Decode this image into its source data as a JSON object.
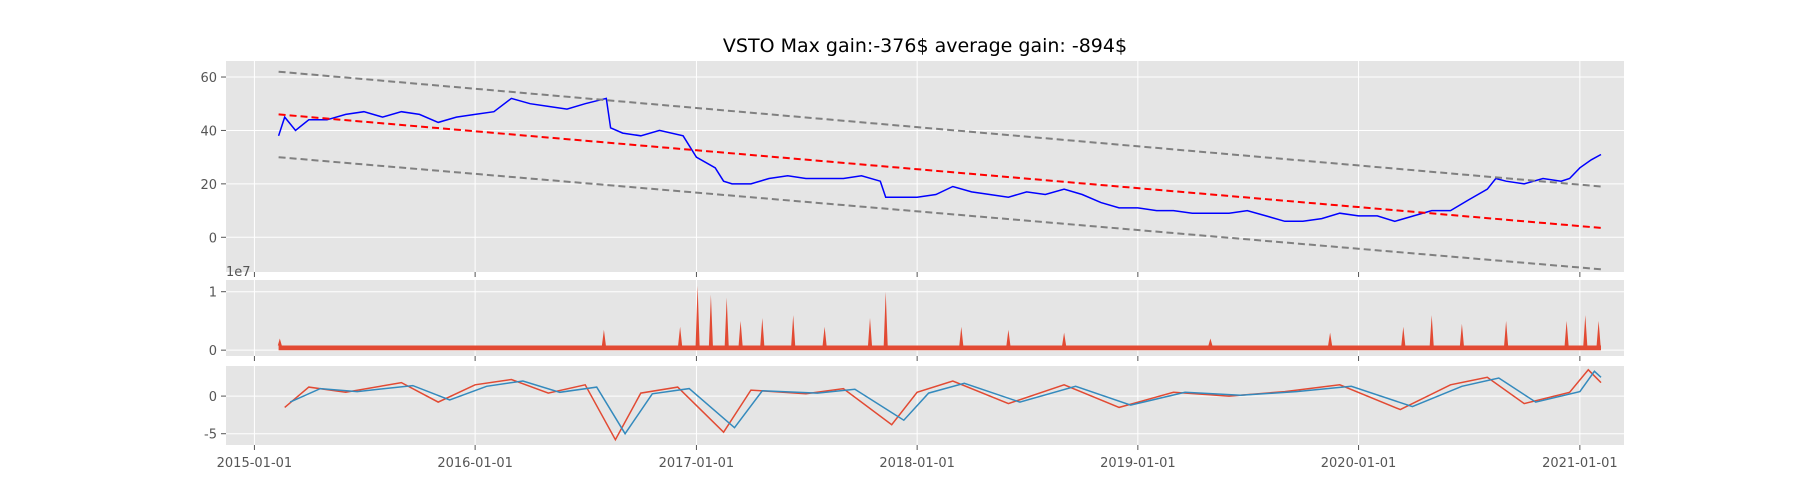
{
  "chart_data": [
    {
      "type": "line",
      "title": "VSTO Max gain:-376$  average gain: -894$",
      "ylim": [
        -13,
        66
      ],
      "yticks": [
        0,
        20,
        40,
        60
      ],
      "grid": true,
      "series": [
        {
          "values": [
            [
              "2015-02-10",
              38
            ],
            [
              "2015-02-20",
              45
            ],
            [
              "2015-03-10",
              40
            ],
            [
              "2015-04-01",
              44
            ],
            [
              "2015-05-01",
              44
            ],
            [
              "2015-06-01",
              46
            ],
            [
              "2015-07-01",
              47
            ],
            [
              "2015-08-01",
              45
            ],
            [
              "2015-09-01",
              47
            ],
            [
              "2015-10-01",
              46
            ],
            [
              "2015-11-01",
              43
            ],
            [
              "2015-12-01",
              45
            ],
            [
              "2016-01-01",
              46
            ],
            [
              "2016-02-01",
              47
            ],
            [
              "2016-03-01",
              52
            ],
            [
              "2016-04-01",
              50
            ],
            [
              "2016-05-01",
              49
            ],
            [
              "2016-06-01",
              48
            ],
            [
              "2016-07-01",
              50
            ],
            [
              "2016-08-05",
              52
            ],
            [
              "2016-08-12",
              41
            ],
            [
              "2016-09-01",
              39
            ],
            [
              "2016-10-01",
              38
            ],
            [
              "2016-11-01",
              40
            ],
            [
              "2016-12-10",
              38
            ],
            [
              "2017-01-01",
              30
            ],
            [
              "2017-02-01",
              26
            ],
            [
              "2017-02-15",
              21
            ],
            [
              "2017-03-01",
              20
            ],
            [
              "2017-04-01",
              20
            ],
            [
              "2017-05-01",
              22
            ],
            [
              "2017-06-01",
              23
            ],
            [
              "2017-07-01",
              22
            ],
            [
              "2017-08-01",
              22
            ],
            [
              "2017-09-01",
              22
            ],
            [
              "2017-10-01",
              23
            ],
            [
              "2017-11-01",
              21
            ],
            [
              "2017-11-10",
              15
            ],
            [
              "2017-12-01",
              15
            ],
            [
              "2018-01-01",
              15
            ],
            [
              "2018-02-01",
              16
            ],
            [
              "2018-03-01",
              19
            ],
            [
              "2018-04-01",
              17
            ],
            [
              "2018-05-01",
              16
            ],
            [
              "2018-06-01",
              15
            ],
            [
              "2018-07-01",
              17
            ],
            [
              "2018-08-01",
              16
            ],
            [
              "2018-09-01",
              18
            ],
            [
              "2018-10-01",
              16
            ],
            [
              "2018-11-01",
              13
            ],
            [
              "2018-12-01",
              11
            ],
            [
              "2019-01-01",
              11
            ],
            [
              "2019-02-01",
              10
            ],
            [
              "2019-03-01",
              10
            ],
            [
              "2019-04-01",
              9
            ],
            [
              "2019-05-01",
              9
            ],
            [
              "2019-06-01",
              9
            ],
            [
              "2019-07-01",
              10
            ],
            [
              "2019-08-01",
              8
            ],
            [
              "2019-09-01",
              6
            ],
            [
              "2019-10-01",
              6
            ],
            [
              "2019-11-01",
              7
            ],
            [
              "2019-12-01",
              9
            ],
            [
              "2020-01-01",
              8
            ],
            [
              "2020-02-01",
              8
            ],
            [
              "2020-03-01",
              6
            ],
            [
              "2020-04-01",
              8
            ],
            [
              "2020-05-01",
              10
            ],
            [
              "2020-06-01",
              10
            ],
            [
              "2020-07-01",
              14
            ],
            [
              "2020-08-01",
              18
            ],
            [
              "2020-08-15",
              22
            ],
            [
              "2020-09-01",
              21
            ],
            [
              "2020-10-01",
              20
            ],
            [
              "2020-11-01",
              22
            ],
            [
              "2020-12-01",
              21
            ],
            [
              "2020-12-15",
              22
            ],
            [
              "2021-01-01",
              26
            ],
            [
              "2021-01-20",
              29
            ],
            [
              "2021-02-05",
              31
            ]
          ],
          "color": "#0000ff"
        },
        {
          "values": [
            [
              "2015-02-10",
              46
            ],
            [
              "2021-02-05",
              3.5
            ]
          ],
          "color": "#ff0000",
          "style": "dashed"
        },
        {
          "values": [
            [
              "2015-02-10",
              62
            ],
            [
              "2021-02-05",
              19
            ]
          ],
          "color": "#808080",
          "style": "dashed"
        },
        {
          "values": [
            [
              "2015-02-10",
              30
            ],
            [
              "2021-02-05",
              -12
            ]
          ],
          "color": "#808080",
          "style": "dashed"
        }
      ]
    },
    {
      "type": "area",
      "offset_label": "1e7",
      "ylim": [
        -0.1,
        1.2
      ],
      "yticks": [
        0,
        1
      ],
      "color": "#e24a33",
      "baseline": 0.08,
      "spikes": [
        [
          "2015-02-12",
          0.2
        ],
        [
          "2016-08-01",
          0.35
        ],
        [
          "2016-12-05",
          0.4
        ],
        [
          "2017-01-03",
          1.1
        ],
        [
          "2017-01-25",
          0.95
        ],
        [
          "2017-02-20",
          0.9
        ],
        [
          "2017-03-15",
          0.5
        ],
        [
          "2017-04-20",
          0.55
        ],
        [
          "2017-06-10",
          0.6
        ],
        [
          "2017-08-01",
          0.4
        ],
        [
          "2017-10-15",
          0.55
        ],
        [
          "2017-11-10",
          1.0
        ],
        [
          "2018-03-15",
          0.4
        ],
        [
          "2018-06-01",
          0.35
        ],
        [
          "2018-09-01",
          0.3
        ],
        [
          "2019-05-01",
          0.2
        ],
        [
          "2019-11-15",
          0.3
        ],
        [
          "2020-03-15",
          0.4
        ],
        [
          "2020-05-01",
          0.6
        ],
        [
          "2020-06-20",
          0.45
        ],
        [
          "2020-09-01",
          0.5
        ],
        [
          "2020-12-10",
          0.5
        ],
        [
          "2021-01-10",
          0.6
        ],
        [
          "2021-02-01",
          0.5
        ]
      ]
    },
    {
      "type": "line",
      "ylim": [
        -6.5,
        4
      ],
      "yticks": [
        0,
        -5
      ],
      "series": [
        {
          "values": [
            [
              "2015-02-20",
              -1.5
            ],
            [
              "2015-04-01",
              1.2
            ],
            [
              "2015-06-01",
              0.5
            ],
            [
              "2015-09-01",
              1.8
            ],
            [
              "2015-11-01",
              -0.8
            ],
            [
              "2016-01-01",
              1.5
            ],
            [
              "2016-03-01",
              2.2
            ],
            [
              "2016-05-01",
              0.4
            ],
            [
              "2016-07-01",
              1.5
            ],
            [
              "2016-08-20",
              -5.8
            ],
            [
              "2016-10-01",
              0.4
            ],
            [
              "2016-12-01",
              1.2
            ],
            [
              "2017-02-15",
              -4.8
            ],
            [
              "2017-04-01",
              0.8
            ],
            [
              "2017-07-01",
              0.3
            ],
            [
              "2017-09-01",
              1.0
            ],
            [
              "2017-11-20",
              -3.8
            ],
            [
              "2018-01-01",
              0.5
            ],
            [
              "2018-03-01",
              2.0
            ],
            [
              "2018-06-01",
              -1.0
            ],
            [
              "2018-09-01",
              1.5
            ],
            [
              "2018-12-01",
              -1.5
            ],
            [
              "2019-03-01",
              0.5
            ],
            [
              "2019-06-01",
              0.0
            ],
            [
              "2019-09-01",
              0.6
            ],
            [
              "2019-12-01",
              1.5
            ],
            [
              "2020-03-10",
              -1.8
            ],
            [
              "2020-06-01",
              1.5
            ],
            [
              "2020-08-01",
              2.5
            ],
            [
              "2020-10-01",
              -1.0
            ],
            [
              "2020-12-15",
              0.5
            ],
            [
              "2021-01-15",
              3.5
            ],
            [
              "2021-02-05",
              1.8
            ]
          ],
          "color": "#e24a33"
        },
        {
          "values": [
            [
              "2015-03-01",
              -0.8
            ],
            [
              "2015-04-20",
              1.0
            ],
            [
              "2015-06-20",
              0.6
            ],
            [
              "2015-09-20",
              1.4
            ],
            [
              "2015-11-20",
              -0.5
            ],
            [
              "2016-01-20",
              1.3
            ],
            [
              "2016-03-20",
              2.0
            ],
            [
              "2016-05-20",
              0.5
            ],
            [
              "2016-07-20",
              1.2
            ],
            [
              "2016-09-05",
              -5.0
            ],
            [
              "2016-10-20",
              0.3
            ],
            [
              "2016-12-20",
              1.0
            ],
            [
              "2017-03-05",
              -4.2
            ],
            [
              "2017-04-20",
              0.7
            ],
            [
              "2017-07-20",
              0.4
            ],
            [
              "2017-09-20",
              0.9
            ],
            [
              "2017-12-10",
              -3.2
            ],
            [
              "2018-01-20",
              0.4
            ],
            [
              "2018-03-20",
              1.7
            ],
            [
              "2018-06-20",
              -0.8
            ],
            [
              "2018-09-20",
              1.3
            ],
            [
              "2018-12-20",
              -1.2
            ],
            [
              "2019-03-20",
              0.5
            ],
            [
              "2019-06-20",
              0.1
            ],
            [
              "2019-09-20",
              0.6
            ],
            [
              "2019-12-20",
              1.3
            ],
            [
              "2020-03-30",
              -1.4
            ],
            [
              "2020-06-20",
              1.3
            ],
            [
              "2020-08-20",
              2.4
            ],
            [
              "2020-10-20",
              -0.8
            ],
            [
              "2021-01-01",
              0.6
            ],
            [
              "2021-01-25",
              3.3
            ],
            [
              "2021-02-05",
              2.5
            ]
          ],
          "color": "#348abd"
        }
      ]
    }
  ],
  "x_axis": {
    "domain": [
      "2014-11-15",
      "2021-03-15"
    ],
    "ticks": [
      "2015-01-01",
      "2016-01-01",
      "2017-01-01",
      "2018-01-01",
      "2019-01-01",
      "2020-01-01",
      "2021-01-01"
    ]
  }
}
